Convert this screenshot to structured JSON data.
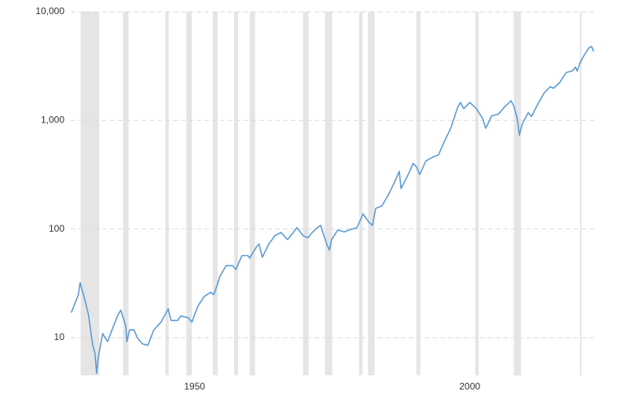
{
  "chart_data": {
    "type": "line",
    "log_scale_y": true,
    "grid": true,
    "recession_color": "#e5e5e5",
    "recessions": [
      [
        1929.3,
        1932.7
      ],
      [
        1937.0,
        1938.0
      ],
      [
        1944.7,
        1945.3
      ],
      [
        1948.5,
        1949.5
      ],
      [
        1953.3,
        1954.2
      ],
      [
        1957.2,
        1957.9
      ],
      [
        1960.0,
        1961.0
      ],
      [
        1969.7,
        1970.7
      ],
      [
        1973.7,
        1975.0
      ],
      [
        1979.9,
        1980.5
      ],
      [
        1981.5,
        1982.7
      ],
      [
        1990.3,
        1991.0
      ],
      [
        2001.0,
        2001.6
      ],
      [
        2008.0,
        2009.3
      ],
      [
        2020.0,
        2020.3
      ]
    ],
    "xlim": [
      1927.5,
      2022.6
    ],
    "xticks": [
      1950,
      2000
    ],
    "ylim": [
      4.5,
      10000
    ],
    "yticks": [
      10,
      100,
      {
        "value": 1000,
        "label": "1,000"
      },
      {
        "value": 10000,
        "label": "10,000"
      }
    ],
    "x": [
      1927.6,
      1928.9,
      1929.2,
      1929.9,
      1930.7,
      1931.5,
      1931.9,
      1932.2,
      1932.5,
      1932.9,
      1933.3,
      1934.2,
      1935.0,
      1936.0,
      1936.6,
      1937.5,
      1937.7,
      1938.2,
      1939.0,
      1939.6,
      1940.5,
      1941.5,
      1942.6,
      1943.9,
      1945.2,
      1945.7,
      1946.9,
      1947.5,
      1948.9,
      1949.5,
      1950.6,
      1951.7,
      1952.9,
      1953.5,
      1954.6,
      1955.7,
      1956.9,
      1957.5,
      1958.6,
      1959.7,
      1960.0,
      1961.2,
      1961.7,
      1962.3,
      1963.5,
      1964.6,
      1965.7,
      1966.9,
      1968.0,
      1968.6,
      1969.7,
      1970.6,
      1971.2,
      1972.3,
      1972.9,
      1974.0,
      1974.5,
      1974.9,
      1976.0,
      1977.2,
      1978.3,
      1979.5,
      1980.6,
      1981.7,
      1982.3,
      1982.9,
      1984.0,
      1985.2,
      1986.3,
      1987.2,
      1987.5,
      1988.6,
      1989.7,
      1990.3,
      1990.9,
      1992.0,
      1993.2,
      1994.3,
      1995.5,
      1996.6,
      1997.7,
      1998.3,
      1998.9,
      2000.0,
      2001.2,
      2002.3,
      2002.9,
      2004.0,
      2005.2,
      2006.3,
      2007.5,
      2008.0,
      2008.6,
      2009.0,
      2009.5,
      2010.6,
      2011.2,
      2012.3,
      2013.5,
      2014.6,
      2015.2,
      2016.3,
      2017.5,
      2018.6,
      2019.2,
      2019.5,
      2020.0,
      2020.6,
      2021.2,
      2021.7,
      2022.1,
      2022.5
    ],
    "series": [
      {
        "color": "#5b9bd5",
        "values": [
          17,
          25,
          32,
          24,
          16.5,
          8.5,
          7.2,
          4.7,
          6.6,
          8.5,
          10.9,
          9.2,
          11.8,
          15.9,
          17.9,
          12.8,
          9.2,
          11.8,
          11.8,
          10,
          8.8,
          8.5,
          11.8,
          13.9,
          18.5,
          14.4,
          14.4,
          15.9,
          15.2,
          13.9,
          19.5,
          23.8,
          26.2,
          24.9,
          36.6,
          46,
          46,
          42.5,
          57,
          57,
          54,
          68,
          73,
          55,
          73,
          87,
          93,
          80,
          94,
          103,
          87,
          83,
          91,
          103,
          108,
          73,
          64,
          80,
          98,
          94,
          99,
          103,
          138,
          115,
          108,
          155,
          163,
          206,
          269,
          340,
          236,
          302,
          401,
          375,
          318,
          422,
          458,
          481,
          659,
          861,
          1282,
          1465,
          1282,
          1465,
          1282,
          1051,
          847,
          1104,
          1142,
          1327,
          1517,
          1350,
          1051,
          730,
          920,
          1180,
          1087,
          1393,
          1790,
          2044,
          1977,
          2222,
          2757,
          2850,
          3098,
          2850,
          3367,
          3845,
          4315,
          4690,
          4800,
          4315
        ]
      }
    ]
  }
}
